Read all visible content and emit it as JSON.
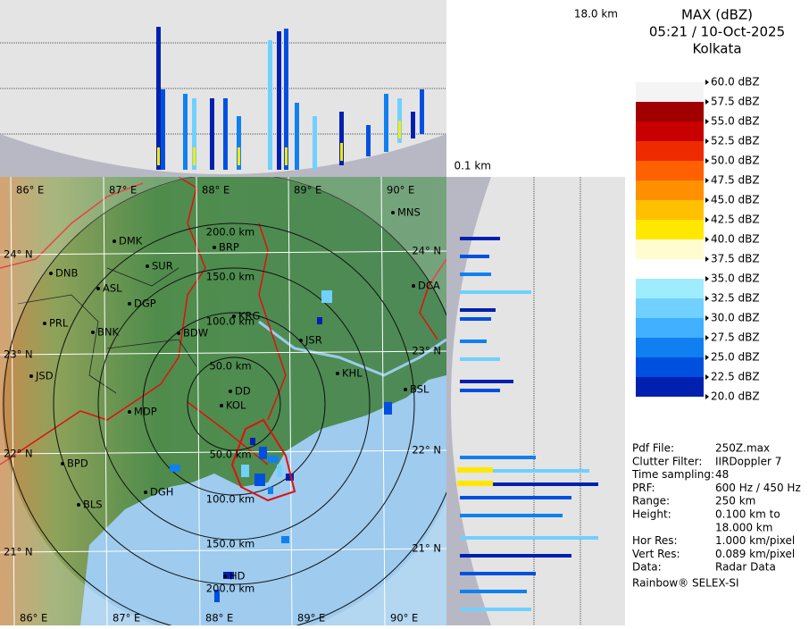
{
  "header": {
    "title": "MAX (dBZ)",
    "time": "05:21 / 10-Oct-2025",
    "site": "Kolkata"
  },
  "heights": {
    "top": "18.0 km",
    "bottom": "0.1 km"
  },
  "legend": {
    "labels": [
      "60.0 dBZ",
      "57.5 dBZ",
      "55.0 dBZ",
      "52.5 dBZ",
      "50.0 dBZ",
      "47.5 dBZ",
      "45.0 dBZ",
      "42.5 dBZ",
      "40.0 dBZ",
      "37.5 dBZ",
      "35.0 dBZ",
      "32.5 dBZ",
      "30.0 dBZ",
      "27.5 dBZ",
      "25.0 dBZ",
      "22.5 dBZ",
      "20.0 dBZ"
    ],
    "colors": [
      "#f4f4f4",
      "#a00000",
      "#c80000",
      "#ee2a00",
      "#ff6000",
      "#ff9000",
      "#ffc000",
      "#ffe800",
      "#fffcd0",
      "#ffffff",
      "#a0ecff",
      "#70d0ff",
      "#40b0ff",
      "#1080f0",
      "#0050e0",
      "#0020b0"
    ]
  },
  "map": {
    "longitudes": [
      "86° E",
      "87° E",
      "88° E",
      "89° E",
      "90° E"
    ],
    "latitudes": [
      "24° N",
      "23° N",
      "22° N",
      "21° N"
    ],
    "rings": [
      "50.0 km",
      "100.0 km",
      "150.0 km",
      "200.0 km"
    ],
    "cities": [
      "MNS",
      "DMK",
      "BRP",
      "DNB",
      "SUR",
      "ASL",
      "DGP",
      "DCA",
      "KRG",
      "PRL",
      "BNK",
      "BDW",
      "JSR",
      "KHL",
      "JSD",
      "DD",
      "KOL",
      "BSL",
      "MDP",
      "BPD",
      "DGH",
      "BLS",
      "HD"
    ]
  },
  "info": [
    {
      "key": "Pdf File:",
      "value": [
        "250Z.max"
      ]
    },
    {
      "key": "Clutter Filter:",
      "value": [
        "IIRDoppler 7"
      ]
    },
    {
      "key": "Time sampling:",
      "value": [
        "48"
      ]
    },
    {
      "key": "PRF:",
      "value": [
        "600 Hz / 450 Hz"
      ]
    },
    {
      "key": "Range:",
      "value": [
        "250 km"
      ]
    },
    {
      "key": "Height:",
      "value": [
        "0.100 km to",
        "18.000 km"
      ]
    },
    {
      "key": "Hor Res:",
      "value": [
        "1.000 km/pixel"
      ]
    },
    {
      "key": "Vert Res:",
      "value": [
        "0.089 km/pixel"
      ]
    },
    {
      "key": "Data:",
      "value": [
        "Radar Data"
      ]
    }
  ],
  "footer": "Rainbow® SELEX-SI"
}
